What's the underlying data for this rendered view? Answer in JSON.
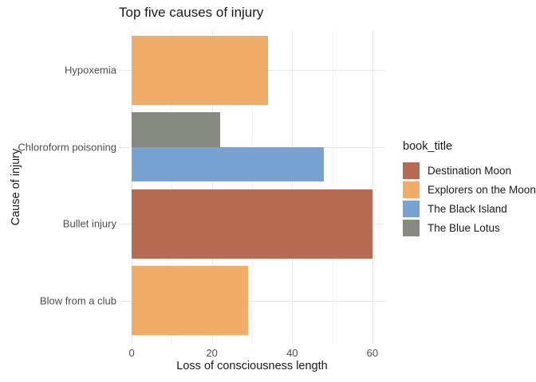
{
  "title": "Top five causes of injury",
  "axes": {
    "x_title": "Loss of consciousness length",
    "y_title": "Cause of injury"
  },
  "legend": {
    "title": "book_title"
  },
  "chart_data": {
    "type": "bar",
    "orientation": "horizontal",
    "title": "Top five causes of injury",
    "xlabel": "Loss of consciousness length",
    "ylabel": "Cause of injury",
    "grid": true,
    "legend_position": "right",
    "legend_title": "book_title",
    "categories": [
      "Hypoxemia",
      "Chloroform poisoning",
      "Bullet injury",
      "Blow from a club"
    ],
    "x_major_ticks": [
      0,
      20,
      40,
      60
    ],
    "x_minor_ticks": [
      10,
      30,
      50
    ],
    "xlim": [
      -3.2,
      63.2
    ],
    "series": [
      {
        "name": "Destination Moon",
        "color": "#b56c52"
      },
      {
        "name": "Explorers on the Moon",
        "color": "#f0ad6a"
      },
      {
        "name": "The Black Island",
        "color": "#78a2d2"
      },
      {
        "name": "The Blue Lotus",
        "color": "#878a80"
      }
    ],
    "bars": [
      {
        "category": "Hypoxemia",
        "series": "Explorers on the Moon",
        "value": 34
      },
      {
        "category": "Chloroform poisoning",
        "series": "The Blue Lotus",
        "value": 22
      },
      {
        "category": "Chloroform poisoning",
        "series": "The Black Island",
        "value": 48
      },
      {
        "category": "Bullet injury",
        "series": "Destination Moon",
        "value": 60
      },
      {
        "category": "Blow from a club",
        "series": "Explorers on the Moon",
        "value": 29
      }
    ],
    "colors": {
      "grid_major": "#e7e7e7",
      "grid_minor": "#f1f1f1",
      "axis_text": "#4d4d4d",
      "title_text": "#1a1a1a",
      "background": "#ffffff"
    }
  }
}
